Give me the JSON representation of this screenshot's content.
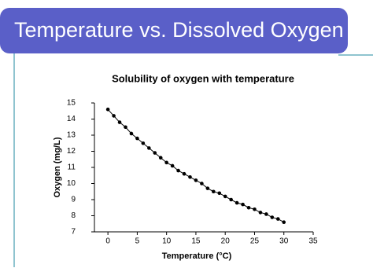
{
  "slide_title": "Temperature vs. Dissolved Oxygen",
  "chart_data": {
    "type": "line",
    "title": "Solubility of oxygen with temperature",
    "x_label": "Temperature (°C)",
    "y_label": "Oxygen (mg/L)",
    "x": [
      0,
      1,
      2,
      3,
      4,
      5,
      6,
      7,
      8,
      9,
      10,
      11,
      12,
      13,
      14,
      15,
      16,
      17,
      18,
      19,
      20,
      21,
      22,
      23,
      24,
      25,
      26,
      27,
      28,
      29,
      30
    ],
    "series": [
      {
        "name": "Oxygen",
        "color": "#000000",
        "values": [
          14.6,
          14.2,
          13.8,
          13.5,
          13.1,
          12.8,
          12.5,
          12.2,
          11.9,
          11.6,
          11.3,
          11.1,
          10.8,
          10.6,
          10.4,
          10.2,
          10.0,
          9.7,
          9.5,
          9.4,
          9.2,
          9.0,
          8.8,
          8.7,
          8.5,
          8.4,
          8.2,
          8.1,
          7.9,
          7.8,
          7.6
        ]
      }
    ],
    "xlim": [
      -2.3,
      35
    ],
    "ylim": [
      7,
      15
    ],
    "xticks": [
      0,
      5,
      10,
      15,
      20,
      25,
      30,
      35
    ],
    "yticks": [
      7,
      8,
      9,
      10,
      11,
      12,
      13,
      14,
      15
    ],
    "grid": false,
    "markers": true
  }
}
